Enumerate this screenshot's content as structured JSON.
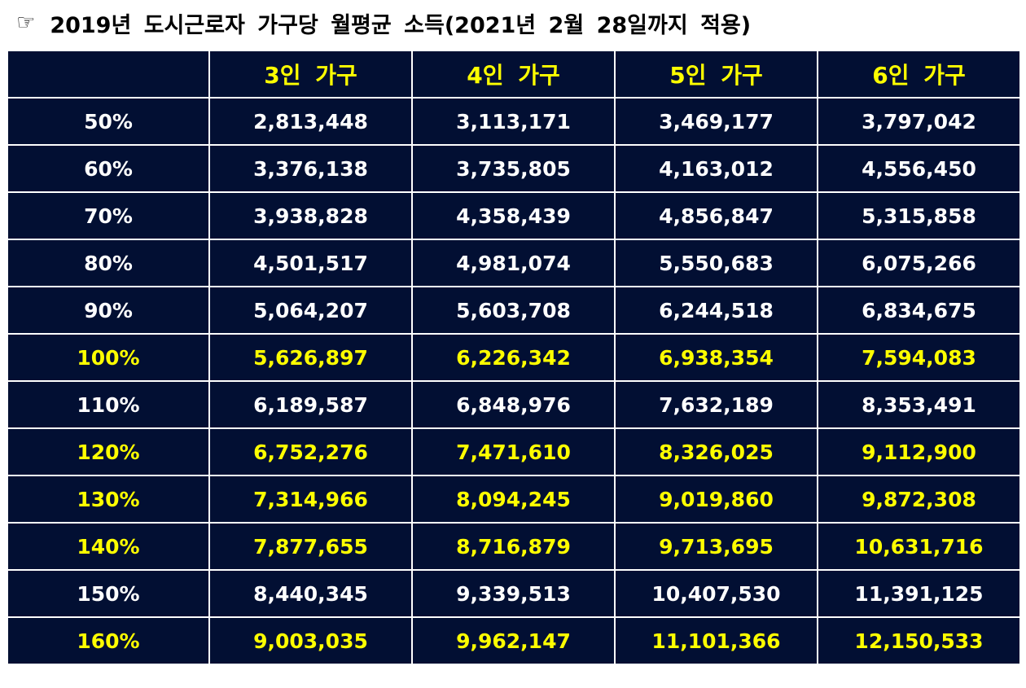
{
  "title": {
    "icon": "pointing-hand-icon",
    "icon_glyph": "☞",
    "text": "2019년 도시근로자 가구당 월평균 소득(2021년 2월 28일까지 적용)"
  },
  "colors": {
    "table_bg": "#020f33",
    "text_default": "#ffffff",
    "text_highlight": "#ffff00",
    "grid": "#ffffff"
  },
  "table": {
    "headers": [
      "",
      "3인 가구",
      "4인 가구",
      "5인 가구",
      "6인 가구"
    ],
    "rows": [
      {
        "label": "50%",
        "highlight": false,
        "values": [
          "2,813,448",
          "3,113,171",
          "3,469,177",
          "3,797,042"
        ]
      },
      {
        "label": "60%",
        "highlight": false,
        "values": [
          "3,376,138",
          "3,735,805",
          "4,163,012",
          "4,556,450"
        ]
      },
      {
        "label": "70%",
        "highlight": false,
        "values": [
          "3,938,828",
          "4,358,439",
          "4,856,847",
          "5,315,858"
        ]
      },
      {
        "label": "80%",
        "highlight": false,
        "values": [
          "4,501,517",
          "4,981,074",
          "5,550,683",
          "6,075,266"
        ]
      },
      {
        "label": "90%",
        "highlight": false,
        "values": [
          "5,064,207",
          "5,603,708",
          "6,244,518",
          "6,834,675"
        ]
      },
      {
        "label": "100%",
        "highlight": true,
        "values": [
          "5,626,897",
          "6,226,342",
          "6,938,354",
          "7,594,083"
        ]
      },
      {
        "label": "110%",
        "highlight": false,
        "values": [
          "6,189,587",
          "6,848,976",
          "7,632,189",
          "8,353,491"
        ]
      },
      {
        "label": "120%",
        "highlight": true,
        "values": [
          "6,752,276",
          "7,471,610",
          "8,326,025",
          "9,112,900"
        ]
      },
      {
        "label": "130%",
        "highlight": true,
        "values": [
          "7,314,966",
          "8,094,245",
          "9,019,860",
          "9,872,308"
        ]
      },
      {
        "label": "140%",
        "highlight": true,
        "values": [
          "7,877,655",
          "8,716,879",
          "9,713,695",
          "10,631,716"
        ]
      },
      {
        "label": "150%",
        "highlight": false,
        "values": [
          "8,440,345",
          "9,339,513",
          "10,407,530",
          "11,391,125"
        ]
      },
      {
        "label": "160%",
        "highlight": true,
        "values": [
          "9,003,035",
          "9,962,147",
          "11,101,366",
          "12,150,533"
        ]
      }
    ]
  }
}
